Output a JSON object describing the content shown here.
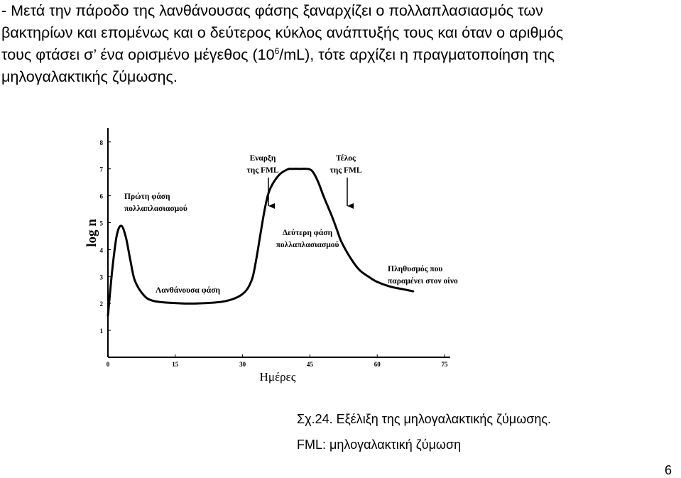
{
  "text": {
    "line1": "- Μετά την πάροδο της λανθάνουσας φάσης ξαναρχίζει ο πολλαπλασιασμός των",
    "line2": "βακτηρίων και επομένως και ο δεύτερος κύκλος ανάπτυξής τους και όταν ο αριθμός",
    "line3a": "τους φτάσει σ’ ένα ορισμένο μέγεθος (10",
    "line3sup": "6",
    "line3b": "/mL), τότε αρχίζει η πραγματοποίηση της",
    "line4": "μηλογαλακτικής ζύμωσης."
  },
  "chart_data": {
    "type": "line",
    "xlabel": "Ημέρες",
    "ylabel": "log n",
    "xlim": [
      0,
      75
    ],
    "ylim": [
      1,
      8
    ],
    "x_ticks": [
      "0",
      "15",
      "30",
      "45",
      "60",
      "75"
    ],
    "y_ticks": [
      "1",
      "2",
      "3",
      "4",
      "5",
      "6",
      "7",
      "8"
    ],
    "series": [
      {
        "x": [
          0,
          1,
          2,
          3,
          4,
          5,
          6,
          8,
          10,
          14,
          20,
          26,
          30,
          32,
          33,
          34,
          35,
          36,
          38,
          40,
          41,
          43,
          45,
          46,
          47,
          48,
          49,
          50,
          51,
          52,
          54,
          56,
          58,
          60,
          63,
          66,
          68
        ],
        "y": [
          1.55,
          3.3,
          4.55,
          4.88,
          4.45,
          3.6,
          2.85,
          2.3,
          2.1,
          2.02,
          2.0,
          2.08,
          2.35,
          2.85,
          3.6,
          4.6,
          5.55,
          6.2,
          6.75,
          6.98,
          7.0,
          7.0,
          6.98,
          6.8,
          6.45,
          6.0,
          5.6,
          5.2,
          4.75,
          4.3,
          3.7,
          3.25,
          3.0,
          2.8,
          2.62,
          2.52,
          2.45
        ]
      }
    ],
    "annotations": {
      "first_phase": [
        "Πρώτη φάση",
        "πολλαπλασιασμού"
      ],
      "lag_phase": "Λανθάνουσα φάση",
      "fml_start": [
        "Εναρξη",
        "της FML"
      ],
      "fml_end": [
        "Τέλος",
        "της FML"
      ],
      "second_phase": [
        "Δεύτερη φάση",
        "πολλαπλασιασμού"
      ],
      "remaining": [
        "Πληθυσμός που",
        "παραμένει στον οίνο"
      ]
    },
    "grid": false,
    "legend": "none"
  },
  "caption": {
    "figure": "Σχ.24. Εξέλιξη της μηλογαλακτικής ζύμωσης.",
    "abbrev": "FML: μηλογαλακτική ζύμωση"
  },
  "page_number": "6"
}
